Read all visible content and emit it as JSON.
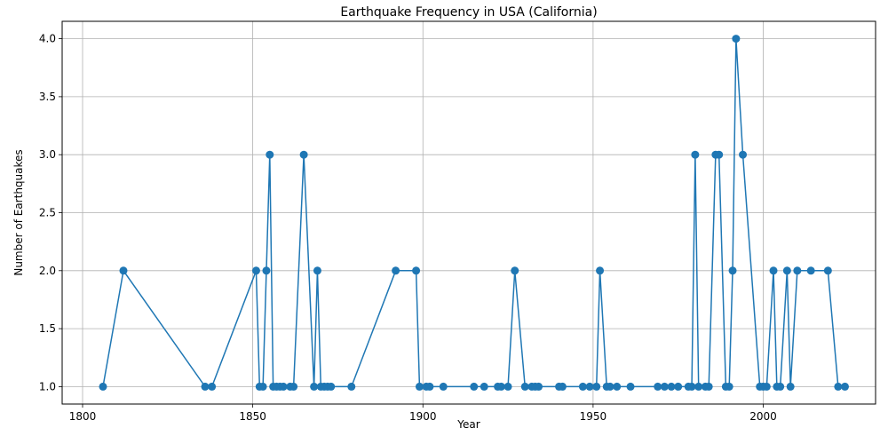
{
  "chart_data": {
    "type": "line",
    "title": "Earthquake Frequency in USA (California)",
    "xlabel": "Year",
    "ylabel": "Number of Earthquakes",
    "xlim": [
      1794,
      2033
    ],
    "ylim": [
      0.85,
      4.15
    ],
    "xticks": [
      1800,
      1850,
      1900,
      1950,
      2000
    ],
    "yticks": [
      1.0,
      1.5,
      2.0,
      2.5,
      3.0,
      3.5,
      4.0
    ],
    "xtick_labels": [
      "1800",
      "1850",
      "1900",
      "1950",
      "2000"
    ],
    "ytick_labels": [
      "1.0",
      "1.5",
      "2.0",
      "2.5",
      "3.0",
      "3.5",
      "4.0"
    ],
    "grid": true,
    "line_color": "#1f77b4",
    "points": [
      [
        1806,
        1
      ],
      [
        1812,
        2
      ],
      [
        1836,
        1
      ],
      [
        1838,
        1
      ],
      [
        1851,
        2
      ],
      [
        1852,
        1
      ],
      [
        1853,
        1
      ],
      [
        1854,
        2
      ],
      [
        1855,
        3
      ],
      [
        1856,
        1
      ],
      [
        1857,
        1
      ],
      [
        1858,
        1
      ],
      [
        1859,
        1
      ],
      [
        1861,
        1
      ],
      [
        1862,
        1
      ],
      [
        1865,
        3
      ],
      [
        1868,
        1
      ],
      [
        1869,
        2
      ],
      [
        1870,
        1
      ],
      [
        1871,
        1
      ],
      [
        1872,
        1
      ],
      [
        1873,
        1
      ],
      [
        1879,
        1
      ],
      [
        1892,
        2
      ],
      [
        1898,
        2
      ],
      [
        1899,
        1
      ],
      [
        1901,
        1
      ],
      [
        1902,
        1
      ],
      [
        1906,
        1
      ],
      [
        1915,
        1
      ],
      [
        1918,
        1
      ],
      [
        1922,
        1
      ],
      [
        1923,
        1
      ],
      [
        1925,
        1
      ],
      [
        1927,
        2
      ],
      [
        1930,
        1
      ],
      [
        1932,
        1
      ],
      [
        1933,
        1
      ],
      [
        1934,
        1
      ],
      [
        1940,
        1
      ],
      [
        1941,
        1
      ],
      [
        1947,
        1
      ],
      [
        1949,
        1
      ],
      [
        1951,
        1
      ],
      [
        1952,
        2
      ],
      [
        1954,
        1
      ],
      [
        1955,
        1
      ],
      [
        1957,
        1
      ],
      [
        1961,
        1
      ],
      [
        1969,
        1
      ],
      [
        1971,
        1
      ],
      [
        1973,
        1
      ],
      [
        1975,
        1
      ],
      [
        1978,
        1
      ],
      [
        1979,
        1
      ],
      [
        1980,
        3
      ],
      [
        1981,
        1
      ],
      [
        1983,
        1
      ],
      [
        1984,
        1
      ],
      [
        1986,
        3
      ],
      [
        1987,
        3
      ],
      [
        1989,
        1
      ],
      [
        1990,
        1
      ],
      [
        1991,
        2
      ],
      [
        1992,
        4
      ],
      [
        1994,
        3
      ],
      [
        1999,
        1
      ],
      [
        2000,
        1
      ],
      [
        2001,
        1
      ],
      [
        2003,
        2
      ],
      [
        2004,
        1
      ],
      [
        2005,
        1
      ],
      [
        2007,
        2
      ],
      [
        2008,
        1
      ],
      [
        2010,
        2
      ],
      [
        2014,
        2
      ],
      [
        2019,
        2
      ],
      [
        2022,
        1
      ],
      [
        2024,
        1
      ]
    ]
  }
}
